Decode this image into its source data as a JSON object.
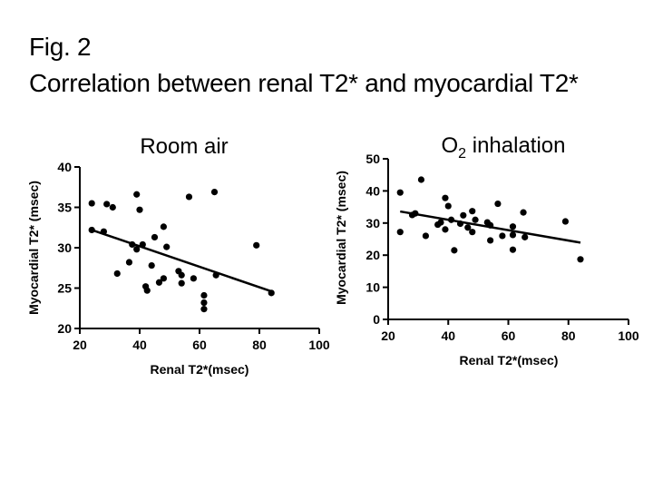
{
  "slide": {
    "title_line1": "Fig. 2",
    "title_line2": "Correlation between renal T2* and myocardial T2*"
  },
  "colors": {
    "ink": "#000000",
    "background": "#ffffff"
  },
  "chart_data": [
    {
      "type": "scatter",
      "title": "Room air",
      "xlabel": "Renal T2*(msec)",
      "ylabel": "Myocardial T2* (msec)",
      "xlim": [
        20,
        100
      ],
      "ylim": [
        20,
        40
      ],
      "xticks": [
        20,
        40,
        60,
        80,
        100
      ],
      "yticks": [
        20,
        25,
        30,
        35,
        40
      ],
      "points": [
        [
          24,
          35.5
        ],
        [
          24,
          32.2
        ],
        [
          28,
          32
        ],
        [
          29,
          35.4
        ],
        [
          31,
          35
        ],
        [
          32.5,
          26.8
        ],
        [
          36.5,
          28.2
        ],
        [
          37.5,
          30.4
        ],
        [
          39,
          36.6
        ],
        [
          39,
          29.8
        ],
        [
          40,
          34.7
        ],
        [
          41,
          30.4
        ],
        [
          42,
          25.2
        ],
        [
          42.5,
          24.7
        ],
        [
          44,
          27.8
        ],
        [
          45,
          31.3
        ],
        [
          46.5,
          25.7
        ],
        [
          48,
          32.6
        ],
        [
          48,
          26.2
        ],
        [
          49,
          30.1
        ],
        [
          53,
          27.1
        ],
        [
          54,
          26.6
        ],
        [
          54,
          25.6
        ],
        [
          56.5,
          36.3
        ],
        [
          58,
          26.2
        ],
        [
          61.5,
          24.1
        ],
        [
          61.5,
          23.2
        ],
        [
          61.5,
          22.4
        ],
        [
          65,
          36.9
        ],
        [
          65.5,
          26.6
        ],
        [
          79,
          30.3
        ],
        [
          84,
          24.4
        ]
      ],
      "fit_line": {
        "x": [
          24,
          84
        ],
        "y": [
          32.2,
          24.6
        ]
      }
    },
    {
      "type": "scatter",
      "title": "O2 inhalation",
      "title_main": "O",
      "title_sub": "2",
      "title_rest": " inhalation",
      "xlabel": "Renal T2*(msec)",
      "ylabel": "Myocardial T2* (msec)",
      "xlim": [
        20,
        100
      ],
      "ylim": [
        0,
        50
      ],
      "xticks": [
        20,
        40,
        60,
        80,
        100
      ],
      "yticks": [
        0,
        10,
        20,
        30,
        40,
        50
      ],
      "points": [
        [
          24,
          39.5
        ],
        [
          24,
          27.2
        ],
        [
          28,
          32.5
        ],
        [
          29,
          33
        ],
        [
          31,
          43.5
        ],
        [
          32.5,
          26
        ],
        [
          36.5,
          29.5
        ],
        [
          37.5,
          30.2
        ],
        [
          39,
          37.8
        ],
        [
          39,
          28
        ],
        [
          40,
          35.3
        ],
        [
          41,
          31
        ],
        [
          42,
          21.5
        ],
        [
          44,
          29.8
        ],
        [
          45,
          32.4
        ],
        [
          46.5,
          28.6
        ],
        [
          48,
          33.7
        ],
        [
          48,
          27.2
        ],
        [
          49,
          31
        ],
        [
          53,
          30.2
        ],
        [
          54,
          29.3
        ],
        [
          54,
          24.6
        ],
        [
          56.5,
          36
        ],
        [
          58,
          26
        ],
        [
          61.5,
          28.9
        ],
        [
          61.5,
          26.3
        ],
        [
          61.5,
          21.7
        ],
        [
          65,
          33.3
        ],
        [
          65.5,
          25.6
        ],
        [
          79,
          30.5
        ],
        [
          84,
          18.7
        ]
      ],
      "fit_line": {
        "x": [
          24,
          84
        ],
        "y": [
          33.6,
          23.9
        ]
      }
    }
  ]
}
